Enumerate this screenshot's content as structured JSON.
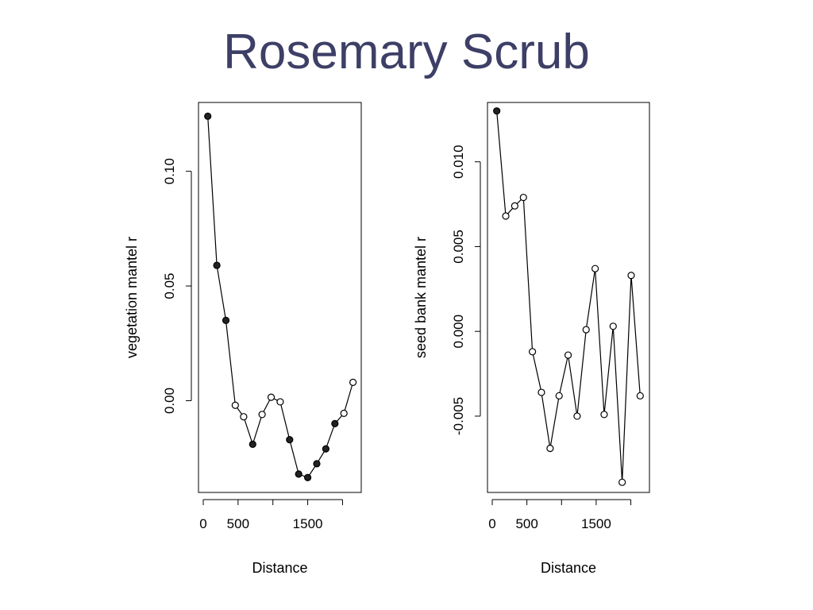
{
  "slide": {
    "title": "Rosemary Scrub"
  },
  "chart_data": [
    {
      "type": "scatter",
      "connected": true,
      "xlabel": "Distance",
      "ylabel": "vegetation mantel r",
      "xlim": [
        0,
        2200
      ],
      "ylim": [
        -0.04,
        0.13
      ],
      "xticks": [
        0,
        500,
        1500
      ],
      "xtick_marks": [
        0,
        500,
        1000,
        1500,
        2000
      ],
      "yticks": [
        0.0,
        0.05,
        0.1
      ],
      "ytick_labels": [
        "0.00",
        "0.05",
        "0.10"
      ],
      "x": [
        65,
        195,
        325,
        460,
        580,
        710,
        845,
        975,
        1105,
        1240,
        1370,
        1500,
        1630,
        1760,
        1890,
        2020,
        2150
      ],
      "y": [
        0.124,
        0.059,
        0.035,
        -0.002,
        -0.007,
        -0.019,
        -0.006,
        0.0015,
        -0.0005,
        -0.017,
        -0.032,
        -0.0335,
        -0.0275,
        -0.021,
        -0.01,
        -0.0055,
        0.008
      ],
      "filled": [
        true,
        true,
        true,
        false,
        false,
        true,
        false,
        false,
        false,
        true,
        true,
        true,
        true,
        true,
        true,
        false,
        false
      ],
      "grid": false
    },
    {
      "type": "scatter",
      "connected": true,
      "xlabel": "Distance",
      "ylabel": "seed bank mantel r",
      "xlim": [
        0,
        2200
      ],
      "ylim": [
        -0.0095,
        0.0135
      ],
      "xticks": [
        0,
        500,
        1500
      ],
      "xtick_marks": [
        0,
        500,
        1000,
        1500,
        2000
      ],
      "yticks": [
        -0.005,
        0.0,
        0.005,
        0.01
      ],
      "ytick_labels": [
        "-0.005",
        "0.000",
        "0.005",
        "0.010"
      ],
      "x": [
        65,
        195,
        325,
        450,
        580,
        710,
        835,
        965,
        1095,
        1225,
        1355,
        1485,
        1615,
        1745,
        1875,
        2005,
        2135
      ],
      "y": [
        0.013,
        0.0068,
        0.0074,
        0.0079,
        -0.0012,
        -0.0036,
        -0.0069,
        -0.0038,
        -0.0014,
        -0.005,
        0.0001,
        0.0037,
        -0.0049,
        0.0003,
        -0.0089,
        0.0033,
        -0.0038
      ],
      "filled": [
        true,
        false,
        false,
        false,
        false,
        false,
        false,
        false,
        false,
        false,
        false,
        false,
        false,
        false,
        false,
        false,
        false
      ],
      "grid": false
    }
  ]
}
